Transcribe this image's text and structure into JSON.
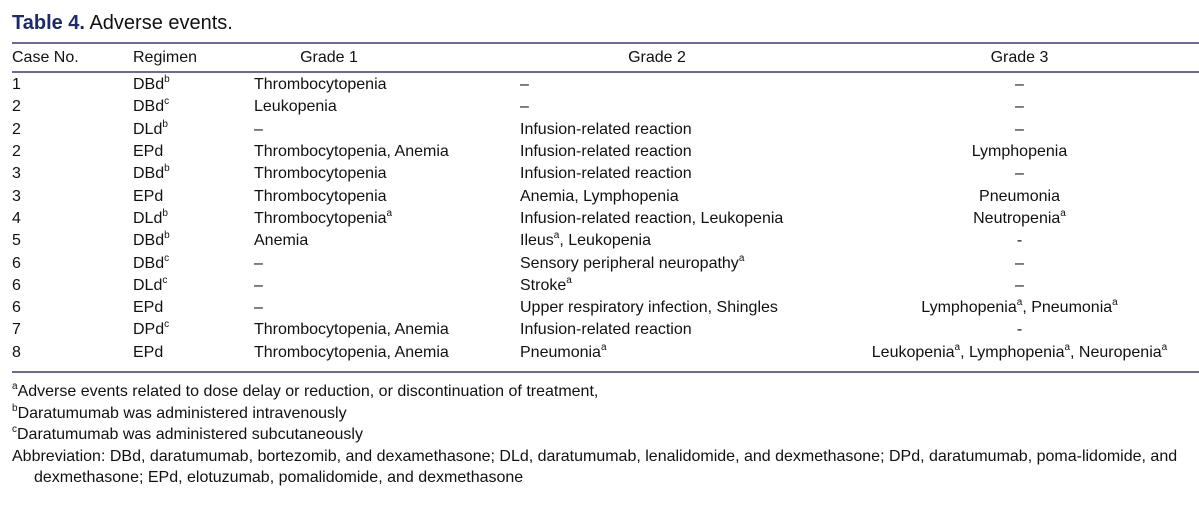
{
  "title": {
    "label": "Table 4.",
    "text": "Adverse events."
  },
  "colors": {
    "title": "#1c2a6e",
    "rules": "#6b6b9b"
  },
  "headers": [
    "Case No.",
    "Regimen",
    "Grade 1",
    "Grade 2",
    "Grade 3"
  ],
  "rows": [
    [
      [
        {
          "t": "1"
        }
      ],
      [
        {
          "t": "DBd",
          "s": "b"
        }
      ],
      [
        {
          "t": "Thrombocytopenia"
        }
      ],
      [
        {
          "t": "–"
        }
      ],
      [
        {
          "t": "–"
        }
      ]
    ],
    [
      [
        {
          "t": "2"
        }
      ],
      [
        {
          "t": "DBd",
          "s": "c"
        }
      ],
      [
        {
          "t": "Leukopenia"
        }
      ],
      [
        {
          "t": "–"
        }
      ],
      [
        {
          "t": "–"
        }
      ]
    ],
    [
      [
        {
          "t": "2"
        }
      ],
      [
        {
          "t": "DLd",
          "s": "b"
        }
      ],
      [
        {
          "t": "–"
        }
      ],
      [
        {
          "t": "Infusion-related reaction"
        }
      ],
      [
        {
          "t": "–"
        }
      ]
    ],
    [
      [
        {
          "t": "2"
        }
      ],
      [
        {
          "t": "EPd"
        }
      ],
      [
        {
          "t": "Thrombocytopenia, Anemia"
        }
      ],
      [
        {
          "t": "Infusion-related reaction"
        }
      ],
      [
        {
          "t": "Lymphopenia"
        }
      ]
    ],
    [
      [
        {
          "t": "3"
        }
      ],
      [
        {
          "t": "DBd",
          "s": "b"
        }
      ],
      [
        {
          "t": "Thrombocytopenia"
        }
      ],
      [
        {
          "t": "Infusion-related reaction"
        }
      ],
      [
        {
          "t": "–"
        }
      ]
    ],
    [
      [
        {
          "t": "3"
        }
      ],
      [
        {
          "t": "EPd"
        }
      ],
      [
        {
          "t": "Thrombocytopenia"
        }
      ],
      [
        {
          "t": "Anemia, Lymphopenia"
        }
      ],
      [
        {
          "t": "Pneumonia"
        }
      ]
    ],
    [
      [
        {
          "t": "4"
        }
      ],
      [
        {
          "t": "DLd",
          "s": "b"
        }
      ],
      [
        {
          "t": "Thrombocytopenia",
          "s": "a"
        }
      ],
      [
        {
          "t": "Infusion-related reaction, Leukopenia"
        }
      ],
      [
        {
          "t": "Neutropenia",
          "s": "a"
        }
      ]
    ],
    [
      [
        {
          "t": "5"
        }
      ],
      [
        {
          "t": "DBd",
          "s": "b"
        }
      ],
      [
        {
          "t": "Anemia"
        }
      ],
      [
        {
          "t": "Ileus",
          "s": "a"
        },
        {
          "t": ", Leukopenia"
        }
      ],
      [
        {
          "t": "-"
        }
      ]
    ],
    [
      [
        {
          "t": "6"
        }
      ],
      [
        {
          "t": "DBd",
          "s": "c"
        }
      ],
      [
        {
          "t": "–"
        }
      ],
      [
        {
          "t": "Sensory peripheral neuropathy",
          "s": "a"
        }
      ],
      [
        {
          "t": "–"
        }
      ]
    ],
    [
      [
        {
          "t": "6"
        }
      ],
      [
        {
          "t": "DLd",
          "s": "c"
        }
      ],
      [
        {
          "t": "–"
        }
      ],
      [
        {
          "t": "Stroke",
          "s": "a"
        }
      ],
      [
        {
          "t": "–"
        }
      ]
    ],
    [
      [
        {
          "t": "6"
        }
      ],
      [
        {
          "t": "EPd"
        }
      ],
      [
        {
          "t": "–"
        }
      ],
      [
        {
          "t": "Upper respiratory infection, Shingles"
        }
      ],
      [
        {
          "t": "Lymphopenia",
          "s": "a"
        },
        {
          "t": ", Pneumonia",
          "s": "a"
        }
      ]
    ],
    [
      [
        {
          "t": "7"
        }
      ],
      [
        {
          "t": "DPd",
          "s": "c"
        }
      ],
      [
        {
          "t": "Thrombocytopenia, Anemia"
        }
      ],
      [
        {
          "t": "Infusion-related reaction"
        }
      ],
      [
        {
          "t": "-"
        }
      ]
    ],
    [
      [
        {
          "t": "8"
        }
      ],
      [
        {
          "t": "EPd"
        }
      ],
      [
        {
          "t": "Thrombocytopenia, Anemia"
        }
      ],
      [
        {
          "t": "Pneumonia",
          "s": "a"
        }
      ],
      [
        {
          "t": "Leukopenia",
          "s": "a"
        },
        {
          "t": ", Lymphopenia",
          "s": "a"
        },
        {
          "t": ", Neuropenia",
          "s": "a"
        }
      ]
    ]
  ],
  "footnotes": [
    {
      "s": "a",
      "t": "Adverse events related to dose delay or reduction, or discontinuation of treatment,"
    },
    {
      "s": "b",
      "t": "Daratumumab was administered intravenously"
    },
    {
      "s": "c",
      "t": "Daratumumab was administered subcutaneously"
    }
  ],
  "abbreviation": "Abbreviation: DBd, daratumumab, bortezomib, and dexamethasone; DLd, daratumumab, lenalidomide, and dexmethasone; DPd, daratumumab, poma-lidomide, and dexmethasone; EPd, elotuzumab, pomalidomide, and dexmethasone"
}
